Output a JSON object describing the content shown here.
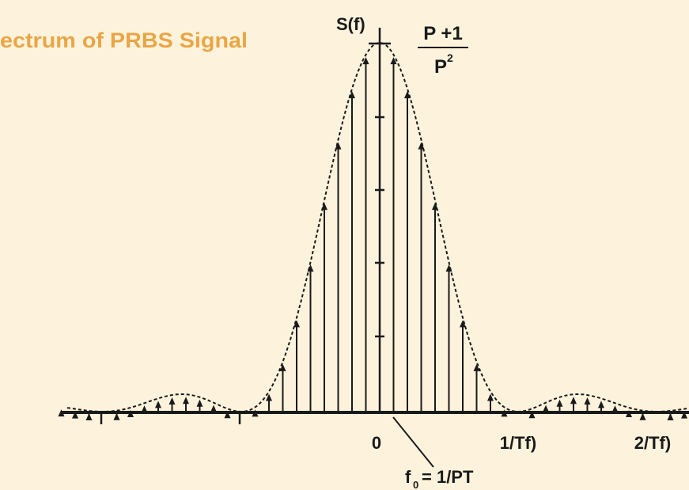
{
  "title": "ectrum of PRBS Signal",
  "y_axis_label": "S(f)",
  "peak_label": {
    "numerator": "P +1",
    "denominator": "P",
    "exponent": "2"
  },
  "x_tick_labels": [
    "0",
    "1/Tf)",
    "2/Tf)"
  ],
  "annotation": {
    "symbol": "f",
    "subscript": "0",
    "text": "= 1/PT"
  }
}
